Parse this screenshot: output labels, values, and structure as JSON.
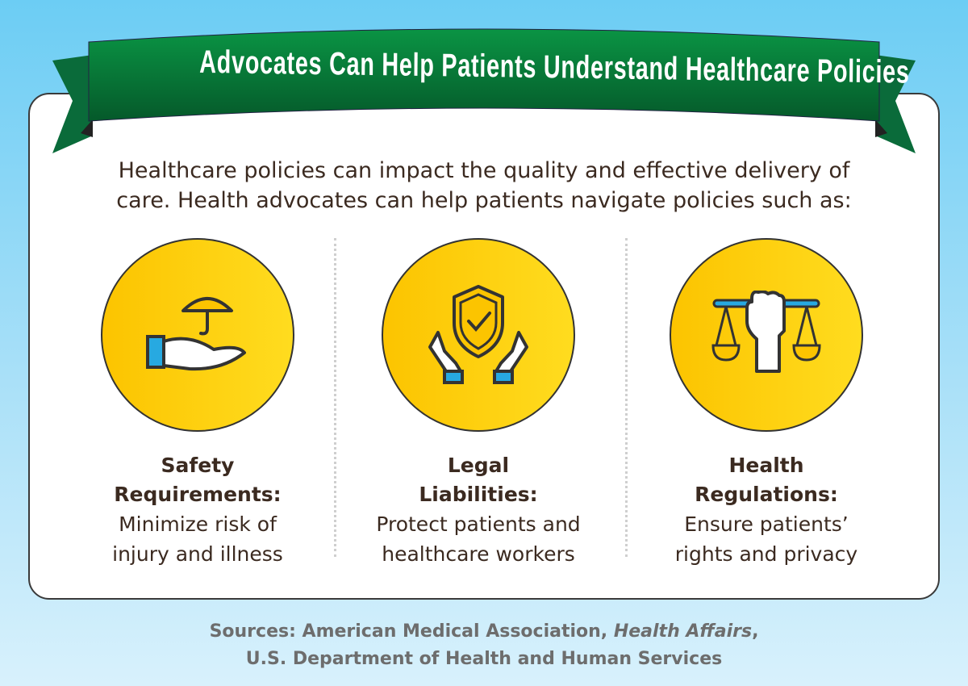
{
  "title": "Advocates Can Help Patients Understand Healthcare Policies",
  "intro": {
    "line1": "Healthcare policies can impact the quality and effective delivery of",
    "line2": "care. Health advocates can help patients navigate policies such as:"
  },
  "items": [
    {
      "title1": "Safety",
      "title2": "Requirements:",
      "desc1": "Minimize risk of",
      "desc2": "injury and illness",
      "icon": "hand-umbrella-icon"
    },
    {
      "title1": "Legal",
      "title2": "Liabilities:",
      "desc1": "Protect patients and",
      "desc2": "healthcare workers",
      "icon": "hands-shield-icon"
    },
    {
      "title1": "Health",
      "title2": "Regulations:",
      "desc1": "Ensure patients’",
      "desc2": "rights and privacy",
      "icon": "fist-scales-icon"
    }
  ],
  "sources": {
    "prefix": "Sources: American Medical Association, ",
    "journal": "Health Affairs",
    "suffix": ",",
    "line2": "U.S. Department of Health and Human Services"
  },
  "colors": {
    "green": "#0a7a3a",
    "yellow": "#fcc400",
    "blue": "#27a9e1",
    "text": "#3b2a20"
  }
}
